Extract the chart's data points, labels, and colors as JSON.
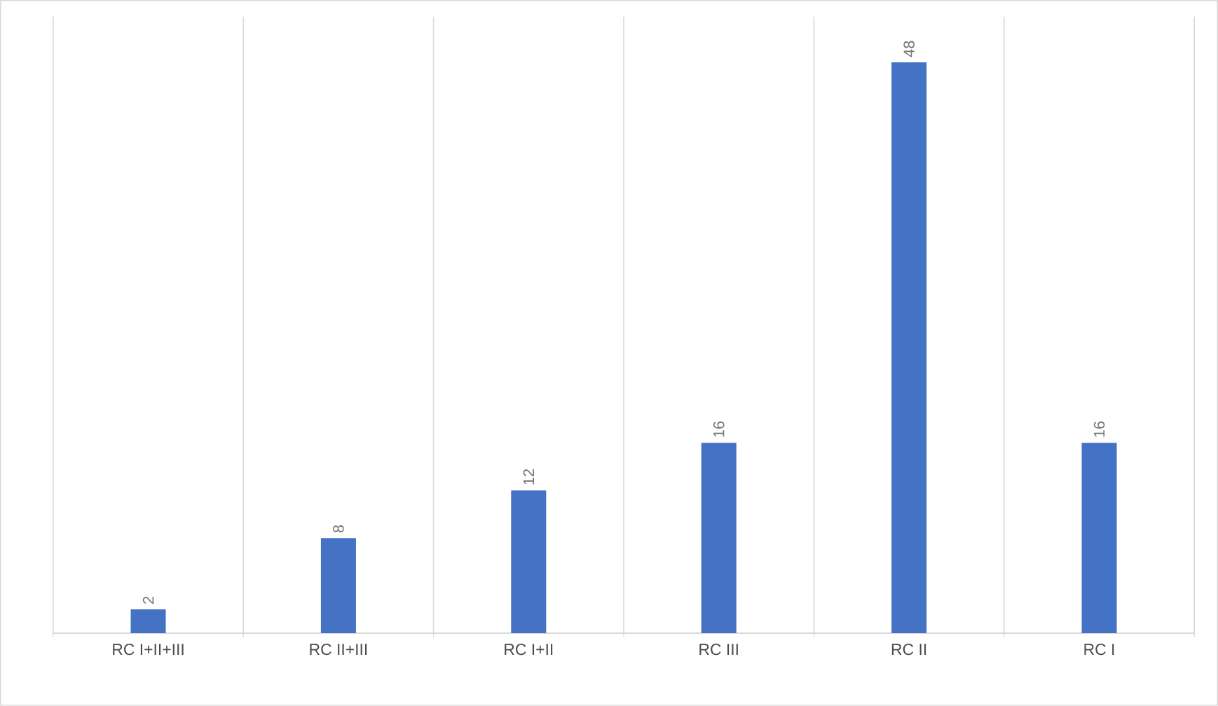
{
  "chart_data": {
    "type": "bar",
    "categories": [
      "RC I+II+III",
      "RC II+III",
      "RC I+II",
      "RC III",
      "RC II",
      "RC I"
    ],
    "values": [
      2,
      8,
      12,
      16,
      48,
      16
    ],
    "color": "#4472c4",
    "data_labels": true,
    "grid": "x"
  }
}
